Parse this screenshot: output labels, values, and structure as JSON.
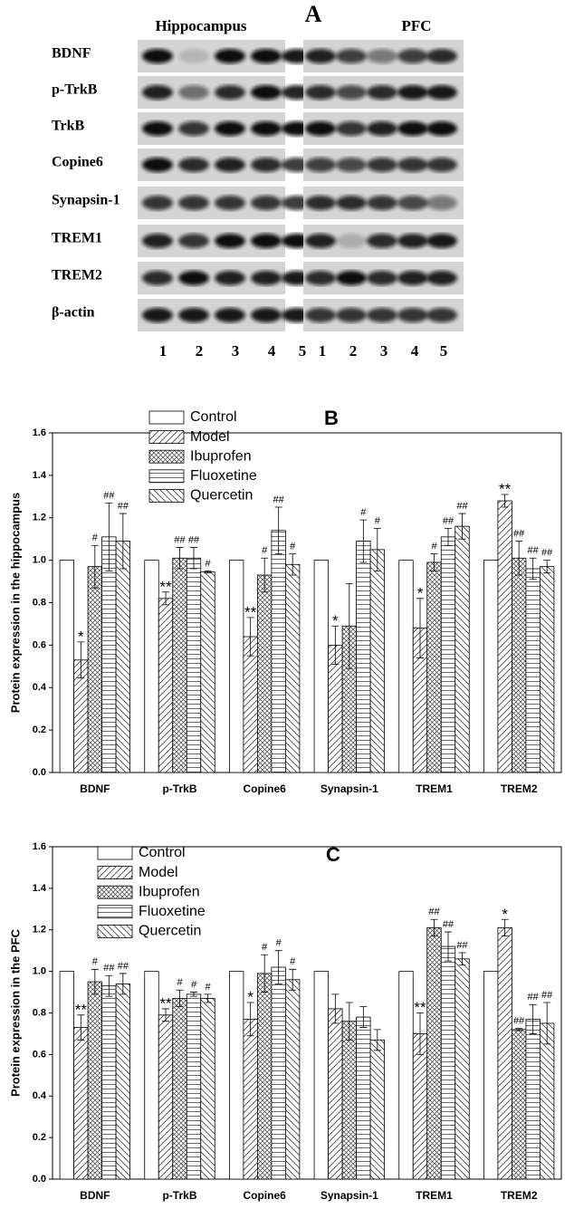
{
  "blot_panel": {
    "label": "A",
    "regions": [
      "Hippocampus",
      "PFC"
    ],
    "proteins": [
      "BDNF",
      "p-TrkB",
      "TrkB",
      "Copine6",
      "Synapsin-1",
      "TREM1",
      "TREM2",
      "β-actin"
    ],
    "lanes": [
      "1",
      "2",
      "3",
      "4",
      "5"
    ]
  },
  "chart_data": [
    {
      "type": "bar",
      "panel_label": "B",
      "y_label": "Protein expression in the hippocampus",
      "categories": [
        "BDNF",
        "p-TrkB",
        "Copine6",
        "Synapsin-1",
        "TREM1",
        "TREM2"
      ],
      "ylim": [
        0,
        1.6
      ],
      "yticks": [
        {
          "value": 0,
          "label": "0.0"
        },
        0.2,
        0.4,
        0.6,
        0.8,
        {
          "value": 1,
          "label": "1.0"
        },
        1.2,
        1.4,
        1.6
      ],
      "series": [
        {
          "name": "Control",
          "pattern": "none",
          "values": [
            1,
            1,
            1,
            1,
            1,
            1
          ],
          "errors": [
            null,
            null,
            null,
            null,
            null,
            null
          ],
          "marks": [
            null,
            null,
            null,
            null,
            null,
            null
          ]
        },
        {
          "name": "Model",
          "pattern": "diagonal",
          "values": [
            0.53,
            0.82,
            0.64,
            0.6,
            0.68,
            1.28
          ],
          "errors": [
            0.085,
            0.03,
            0.09,
            0.09,
            0.14,
            0.03
          ],
          "marks": [
            "*",
            "**",
            "**",
            "*",
            "*",
            "**"
          ]
        },
        {
          "name": "Ibuprofen",
          "pattern": "crosshatch",
          "values": [
            0.97,
            1.01,
            0.93,
            0.69,
            0.99,
            1.01
          ],
          "errors": [
            0.1,
            0.05,
            0.08,
            0.2,
            0.04,
            0.08
          ],
          "marks": [
            "#",
            "##",
            "#",
            null,
            "#",
            "##"
          ]
        },
        {
          "name": "Fluoxetine",
          "pattern": "horizontal",
          "values": [
            1.11,
            1.01,
            1.14,
            1.09,
            1.11,
            0.96
          ],
          "errors": [
            0.16,
            0.05,
            0.11,
            0.1,
            0.04,
            0.05
          ],
          "marks": [
            "##",
            "##",
            "##",
            "#",
            "##",
            "##"
          ]
        },
        {
          "name": "Quercetin",
          "pattern": "backdiagonal",
          "values": [
            1.09,
            0.945,
            0.98,
            1.05,
            1.16,
            0.97
          ],
          "errors": [
            0.13,
            0.005,
            0.05,
            0.1,
            0.06,
            0.03
          ],
          "marks": [
            "##",
            "#",
            "#",
            "#",
            "##",
            "##"
          ]
        }
      ]
    },
    {
      "type": "bar",
      "panel_label": "C",
      "y_label": "Protein expression in the PFC",
      "categories": [
        "BDNF",
        "p-TrkB",
        "Copine6",
        "Synapsin-1",
        "TREM1",
        "TREM2"
      ],
      "ylim": [
        0,
        1.6
      ],
      "yticks": [
        {
          "value": 0,
          "label": "0.0"
        },
        0.2,
        0.4,
        0.6,
        0.8,
        {
          "value": 1,
          "label": "1.0"
        },
        1.2,
        1.4,
        1.6
      ],
      "series": [
        {
          "name": "Control",
          "pattern": "none",
          "values": [
            1,
            1,
            1,
            1,
            1,
            1
          ],
          "errors": [
            null,
            null,
            null,
            null,
            null,
            null
          ],
          "marks": [
            null,
            null,
            null,
            null,
            null,
            null
          ]
        },
        {
          "name": "Model",
          "pattern": "diagonal",
          "values": [
            0.73,
            0.79,
            0.77,
            0.82,
            0.7,
            1.21
          ],
          "errors": [
            0.06,
            0.03,
            0.08,
            0.07,
            0.1,
            0.04
          ],
          "marks": [
            "**",
            "**",
            "*",
            null,
            "**",
            "*"
          ]
        },
        {
          "name": "Ibuprofen",
          "pattern": "crosshatch",
          "values": [
            0.95,
            0.87,
            0.99,
            0.76,
            1.21,
            0.72
          ],
          "errors": [
            0.06,
            0.04,
            0.09,
            0.09,
            0.04,
            0.005
          ],
          "marks": [
            "#",
            "#",
            "#",
            null,
            "##",
            "##"
          ]
        },
        {
          "name": "Fluoxetine",
          "pattern": "horizontal",
          "values": [
            0.93,
            0.89,
            1.02,
            0.78,
            1.12,
            0.77
          ],
          "errors": [
            0.05,
            0.01,
            0.08,
            0.05,
            0.07,
            0.07
          ],
          "marks": [
            "##",
            "#",
            "#",
            null,
            "##",
            "##"
          ]
        },
        {
          "name": "Quercetin",
          "pattern": "backdiagonal",
          "values": [
            0.94,
            0.87,
            0.96,
            0.67,
            1.06,
            0.75
          ],
          "errors": [
            0.05,
            0.02,
            0.05,
            0.05,
            0.03,
            0.1
          ],
          "marks": [
            "##",
            "#",
            "#",
            null,
            "##",
            "##"
          ]
        }
      ]
    }
  ]
}
